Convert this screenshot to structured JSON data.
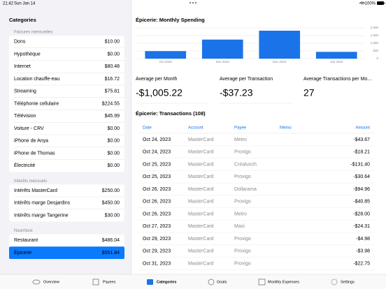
{
  "status_bar": {
    "time": "21:42",
    "date": "Sun Jan 14",
    "battery": "100%"
  },
  "sidebar": {
    "title": "Categories",
    "groups": [
      {
        "name": "Factures mensuelles",
        "items": [
          {
            "name": "Dons",
            "amount": "$10.00"
          },
          {
            "name": "Hypothèque",
            "amount": "$0.00"
          },
          {
            "name": "Internet",
            "amount": "$80.48"
          },
          {
            "name": "Location chauffe-eau",
            "amount": "$16.72"
          },
          {
            "name": "Streaming",
            "amount": "$75.81"
          },
          {
            "name": "Téléphonie cellulaire",
            "amount": "$224.55"
          },
          {
            "name": "Télévision",
            "amount": "$45.99"
          },
          {
            "name": "Voiture - CRV",
            "amount": "$0.00"
          },
          {
            "name": "iPhone de Anya",
            "amount": "$0.00"
          },
          {
            "name": "iPhone de Thomas",
            "amount": "$0.00"
          },
          {
            "name": "Électricité",
            "amount": "$0.00"
          }
        ]
      },
      {
        "name": "Intérêts mensuels",
        "items": [
          {
            "name": "Intérêts MasterCard",
            "amount": "$250.00"
          },
          {
            "name": "Intérêts marge Desjardins",
            "amount": "$450.00"
          },
          {
            "name": "Intérêts marge Tangerine",
            "amount": "$30.00"
          }
        ]
      },
      {
        "name": "Nourriture",
        "items": [
          {
            "name": "Restaurant",
            "amount": "$486.04"
          },
          {
            "name": "Épicerie",
            "amount": "$551.84",
            "selected": true
          }
        ]
      }
    ]
  },
  "chart": {
    "type": "bar",
    "title": "Épicerie: Monthly Spending",
    "categories": [
      "Oct 2023",
      "Nov 2023",
      "Dec 2023",
      "Jan 2024"
    ],
    "values": [
      490,
      1240,
      1820,
      440
    ],
    "color": "#1a73e8",
    "ylim": [
      0,
      2000
    ],
    "yticks": [
      0,
      500,
      {
        "value": 1000,
        "label": "1,000"
      },
      {
        "value": 1500,
        "label": "1,500"
      },
      {
        "value": 2000,
        "label": "2,000"
      }
    ],
    "grid": true
  },
  "stats": [
    {
      "label": "Average per Month",
      "value": "-$1,005.22"
    },
    {
      "label": "Average per Transaction",
      "value": "-$37.23"
    },
    {
      "label": "Average Transactions per Mo...",
      "value": "27"
    }
  ],
  "transactions": {
    "title": "Épicerie: Transactions (108)",
    "columns": [
      "Date",
      "Account",
      "Payee",
      "Memo",
      "Amount"
    ],
    "rows": [
      [
        "Oct 24, 2023",
        "MasterCard",
        "Metro",
        "",
        "-$43.67"
      ],
      [
        "Oct 24, 2023",
        "MasterCard",
        "Provigo",
        "",
        "-$18.21"
      ],
      [
        "Oct 25, 2023",
        "MasterCard",
        "Créalunch",
        "",
        "-$131.40"
      ],
      [
        "Oct 25, 2023",
        "MasterCard",
        "Provigo",
        "",
        "-$30.64"
      ],
      [
        "Oct 26, 2023",
        "MasterCard",
        "Dollarama",
        "",
        "-$94.96"
      ],
      [
        "Oct 26, 2023",
        "MasterCard",
        "Provigo",
        "",
        "-$40.85"
      ],
      [
        "Oct 26, 2023",
        "MasterCard",
        "Metro",
        "",
        "-$28.00"
      ],
      [
        "Oct 27, 2023",
        "MasterCard",
        "Maxi",
        "",
        "-$24.31"
      ],
      [
        "Oct 29, 2023",
        "MasterCard",
        "Provigo",
        "",
        "-$4.98"
      ],
      [
        "Oct 29, 2023",
        "MasterCard",
        "Provigo",
        "",
        "-$3.98"
      ],
      [
        "Oct 31, 2023",
        "MasterCard",
        "Provigo",
        "",
        "-$22.75"
      ]
    ]
  },
  "tab_bar": {
    "tabs": [
      {
        "label": "Overview"
      },
      {
        "label": "Payees"
      },
      {
        "label": "Categories",
        "selected": true
      },
      {
        "label": "Goals"
      },
      {
        "label": "Monthly Expenses"
      },
      {
        "label": "Settings"
      }
    ]
  }
}
